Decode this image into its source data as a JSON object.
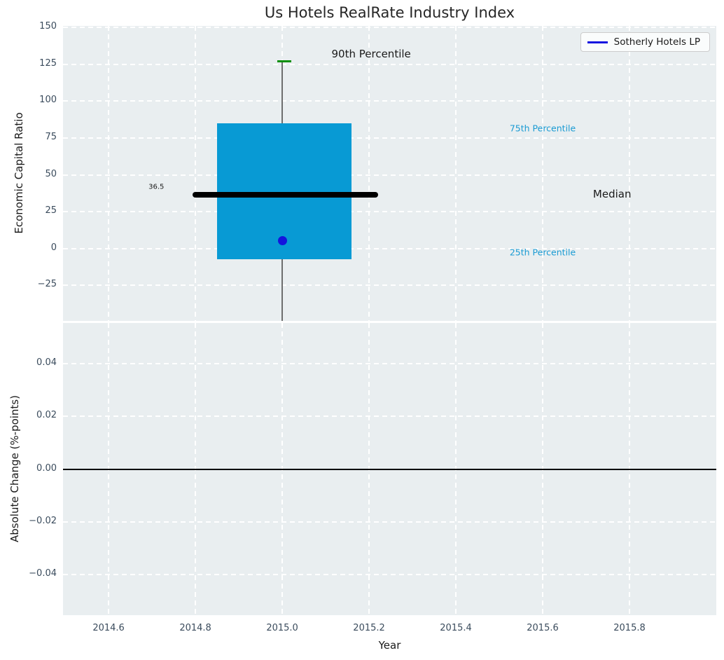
{
  "figure": {
    "title": "Us Hotels RealRate Industry Index",
    "xlabel": "Year"
  },
  "legend": {
    "label": "Sotherly Hotels LP"
  },
  "top_plot": {
    "ylabel": "Economic Capital Ratio"
  },
  "bottom_plot": {
    "ylabel": "Absolute Change (%-points)"
  },
  "colors": {
    "axes_bg": "#e9eef0",
    "grid": "#ffffff",
    "box_fill": "#089ad4",
    "median_line": "#000000",
    "p90_cap": "#0a8f0a",
    "whisker": "#6e6e6e",
    "company_marker": "#1414dd",
    "legend_line": "#1414e0",
    "tick_label": "#3a4b5c",
    "percentile_label": "#1a9bd3",
    "annotation_text": "#1a1a1a",
    "zero_line": "#000000"
  },
  "chart_data": [
    {
      "type": "boxplot",
      "title": "Us Hotels RealRate Industry Index",
      "ylabel": "Economic Capital Ratio",
      "legend_entries": [
        "Sotherly Hotels LP"
      ],
      "x_center": 2015.0,
      "box": {
        "q1_25th_percentile": -7,
        "median": 36.5,
        "q3_75th_percentile": 85,
        "p90_90th_percentile": 127,
        "whisker_extends_below_axis": true,
        "box_x_left": 2014.85,
        "box_x_right": 2015.16,
        "median_x_left": 2014.8,
        "median_x_right": 2015.215,
        "cap_x_left": 2014.989,
        "cap_x_right": 2015.021
      },
      "company_point": {
        "name": "Sotherly Hotels LP",
        "x": 2015.0,
        "y": 5.5
      },
      "annotations": [
        {
          "text": "90th Percentile",
          "x": 2015.205,
          "y": 132,
          "color": "#1a1a1a",
          "size": 15
        },
        {
          "text": "75th Percentile",
          "x": 2015.6,
          "y": 81.5,
          "color": "#1a9bd3",
          "size": 12.5
        },
        {
          "text": "36.5",
          "x": 2014.71,
          "y": 41.5,
          "color": "#1a1a1a",
          "size": 10
        },
        {
          "text": "Median",
          "x": 2015.76,
          "y": 37,
          "color": "#1a1a1a",
          "size": 15
        },
        {
          "text": "25th Percentile",
          "x": 2015.6,
          "y": -2.5,
          "color": "#1a9bd3",
          "size": 12.5
        }
      ],
      "xlim": [
        2014.495,
        2016.0
      ],
      "ylim": [
        -49,
        151
      ],
      "xticks": [
        2014.6,
        2014.8,
        2015.0,
        2015.2,
        2015.4,
        2015.6,
        2015.8
      ],
      "xtick_labels": [
        "2014.6",
        "2014.8",
        "2015.0",
        "2015.2",
        "2015.4",
        "2015.6",
        "2015.8"
      ],
      "yticks": [
        150,
        125,
        100,
        75,
        50,
        25,
        0,
        -25
      ],
      "ytick_labels": [
        "150",
        "125",
        "100",
        "75",
        "50",
        "25",
        "0",
        "−25"
      ],
      "grid": "white dashed, on"
    },
    {
      "type": "line",
      "ylabel": "Absolute Change (%-points)",
      "xlabel": "Year",
      "series": [],
      "reference_line_y": 0.0,
      "xlim": [
        2014.495,
        2016.0
      ],
      "ylim": [
        -0.0553,
        0.0553
      ],
      "xticks": [
        2014.6,
        2014.8,
        2015.0,
        2015.2,
        2015.4,
        2015.6,
        2015.8
      ],
      "yticks": [
        0.04,
        0.02,
        0.0,
        -0.02,
        -0.04
      ],
      "ytick_labels": [
        "0.04",
        "0.02",
        "0.00",
        "−0.02",
        "−0.04"
      ],
      "grid": "white dashed, on"
    }
  ]
}
